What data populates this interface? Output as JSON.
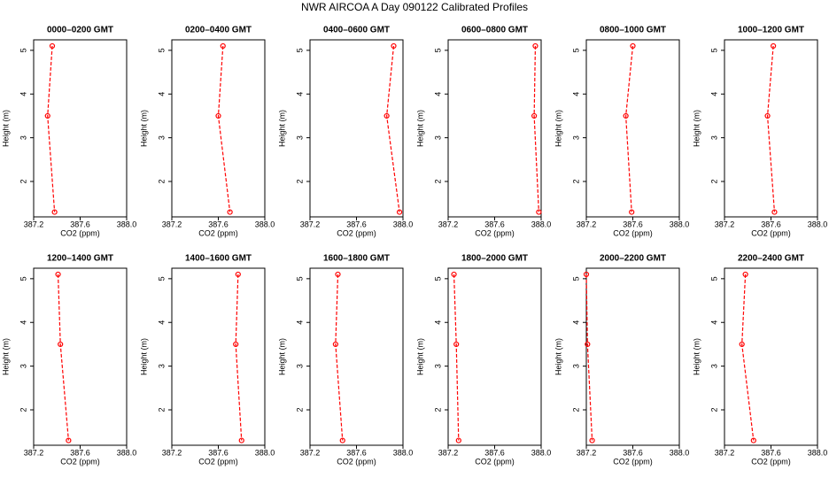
{
  "title": "NWR AIRCOA A  Day 090122  Calibrated Profiles",
  "chart_data": [
    {
      "type": "line",
      "title": "0000–0200 GMT",
      "xlabel": "CO2 (ppm)",
      "ylabel": "Height (m)",
      "color": "#ff0000",
      "x": [
        387.36,
        387.32,
        387.38
      ],
      "values": [
        5.1,
        3.5,
        1.3
      ],
      "xlim": [
        387.2,
        388.0
      ],
      "ylim": [
        1.19,
        5.24
      ],
      "xticks": [
        387.2,
        387.6,
        {
          "value": 388.0,
          "label": "388.0"
        }
      ],
      "yticks": [
        2,
        3,
        4,
        5
      ]
    },
    {
      "type": "line",
      "title": "0200–0400 GMT",
      "xlabel": "CO2 (ppm)",
      "ylabel": "Height (m)",
      "color": "#ff0000",
      "x": [
        387.64,
        387.6,
        387.7
      ],
      "values": [
        5.1,
        3.5,
        1.3
      ],
      "xlim": [
        387.2,
        388.0
      ],
      "ylim": [
        1.19,
        5.24
      ],
      "xticks": [
        387.2,
        387.6,
        {
          "value": 388.0,
          "label": "388.0"
        }
      ],
      "yticks": [
        2,
        3,
        4,
        5
      ]
    },
    {
      "type": "line",
      "title": "0400–0600 GMT",
      "xlabel": "CO2 (ppm)",
      "ylabel": "Height (m)",
      "color": "#ff0000",
      "x": [
        387.92,
        387.86,
        387.97
      ],
      "values": [
        5.1,
        3.5,
        1.3
      ],
      "xlim": [
        387.2,
        388.0
      ],
      "ylim": [
        1.19,
        5.24
      ],
      "xticks": [
        387.2,
        387.6,
        {
          "value": 388.0,
          "label": "388.0"
        }
      ],
      "yticks": [
        2,
        3,
        4,
        5
      ]
    },
    {
      "type": "line",
      "title": "0600–0800 GMT",
      "xlabel": "CO2 (ppm)",
      "ylabel": "Height (m)",
      "color": "#ff0000",
      "x": [
        387.95,
        387.94,
        387.98
      ],
      "values": [
        5.1,
        3.5,
        1.3
      ],
      "xlim": [
        387.2,
        388.0
      ],
      "ylim": [
        1.19,
        5.24
      ],
      "xticks": [
        387.2,
        387.6,
        {
          "value": 388.0,
          "label": "388.0"
        }
      ],
      "yticks": [
        2,
        3,
        4,
        5
      ]
    },
    {
      "type": "line",
      "title": "0800–1000 GMT",
      "xlabel": "CO2 (ppm)",
      "ylabel": "Height (m)",
      "color": "#ff0000",
      "x": [
        387.6,
        387.54,
        387.59
      ],
      "values": [
        5.1,
        3.5,
        1.3
      ],
      "xlim": [
        387.2,
        388.0
      ],
      "ylim": [
        1.19,
        5.24
      ],
      "xticks": [
        387.2,
        387.6,
        {
          "value": 388.0,
          "label": "388.0"
        }
      ],
      "yticks": [
        2,
        3,
        4,
        5
      ]
    },
    {
      "type": "line",
      "title": "1000–1200 GMT",
      "xlabel": "CO2 (ppm)",
      "ylabel": "Height (m)",
      "color": "#ff0000",
      "x": [
        387.62,
        387.57,
        387.63
      ],
      "values": [
        5.1,
        3.5,
        1.3
      ],
      "xlim": [
        387.2,
        388.0
      ],
      "ylim": [
        1.19,
        5.24
      ],
      "xticks": [
        387.2,
        387.6,
        {
          "value": 388.0,
          "label": "388.0"
        }
      ],
      "yticks": [
        2,
        3,
        4,
        5
      ]
    },
    {
      "type": "line",
      "title": "1200–1400 GMT",
      "xlabel": "CO2 (ppm)",
      "ylabel": "Height (m)",
      "color": "#ff0000",
      "x": [
        387.41,
        387.43,
        387.5
      ],
      "values": [
        5.1,
        3.5,
        1.3
      ],
      "xlim": [
        387.2,
        388.0
      ],
      "ylim": [
        1.19,
        5.24
      ],
      "xticks": [
        387.2,
        387.6,
        {
          "value": 388.0,
          "label": "388.0"
        }
      ],
      "yticks": [
        2,
        3,
        4,
        5
      ]
    },
    {
      "type": "line",
      "title": "1400–1600 GMT",
      "xlabel": "CO2 (ppm)",
      "ylabel": "Height (m)",
      "color": "#ff0000",
      "x": [
        387.77,
        387.75,
        387.8
      ],
      "values": [
        5.1,
        3.5,
        1.3
      ],
      "xlim": [
        387.2,
        388.0
      ],
      "ylim": [
        1.19,
        5.24
      ],
      "xticks": [
        387.2,
        387.6,
        {
          "value": 388.0,
          "label": "388.0"
        }
      ],
      "yticks": [
        2,
        3,
        4,
        5
      ]
    },
    {
      "type": "line",
      "title": "1600–1800 GMT",
      "xlabel": "CO2 (ppm)",
      "ylabel": "Height (m)",
      "color": "#ff0000",
      "x": [
        387.44,
        387.42,
        387.48
      ],
      "values": [
        5.1,
        3.5,
        1.3
      ],
      "xlim": [
        387.2,
        388.0
      ],
      "ylim": [
        1.19,
        5.24
      ],
      "xticks": [
        387.2,
        387.6,
        {
          "value": 388.0,
          "label": "388.0"
        }
      ],
      "yticks": [
        2,
        3,
        4,
        5
      ]
    },
    {
      "type": "line",
      "title": "1800–2000 GMT",
      "xlabel": "CO2 (ppm)",
      "ylabel": "Height (m)",
      "color": "#ff0000",
      "x": [
        387.25,
        387.27,
        387.29
      ],
      "values": [
        5.1,
        3.5,
        1.3
      ],
      "xlim": [
        387.2,
        388.0
      ],
      "ylim": [
        1.19,
        5.24
      ],
      "xticks": [
        387.2,
        387.6,
        {
          "value": 388.0,
          "label": "388.0"
        }
      ],
      "yticks": [
        2,
        3,
        4,
        5
      ]
    },
    {
      "type": "line",
      "title": "2000–2200 GMT",
      "xlabel": "CO2 (ppm)",
      "ylabel": "Height (m)",
      "color": "#ff0000",
      "x": [
        387.2,
        387.21,
        387.25
      ],
      "values": [
        5.1,
        3.5,
        1.3
      ],
      "xlim": [
        387.2,
        388.0
      ],
      "ylim": [
        1.19,
        5.24
      ],
      "xticks": [
        387.2,
        387.6,
        {
          "value": 388.0,
          "label": "388.0"
        }
      ],
      "yticks": [
        2,
        3,
        4,
        5
      ]
    },
    {
      "type": "line",
      "title": "2200–2400 GMT",
      "xlabel": "CO2 (ppm)",
      "ylabel": "Height (m)",
      "color": "#ff0000",
      "x": [
        387.38,
        387.35,
        387.45
      ],
      "values": [
        5.1,
        3.5,
        1.3
      ],
      "xlim": [
        387.2,
        388.0
      ],
      "ylim": [
        1.19,
        5.24
      ],
      "xticks": [
        387.2,
        387.6,
        {
          "value": 388.0,
          "label": "388.0"
        }
      ],
      "yticks": [
        2,
        3,
        4,
        5
      ]
    }
  ]
}
